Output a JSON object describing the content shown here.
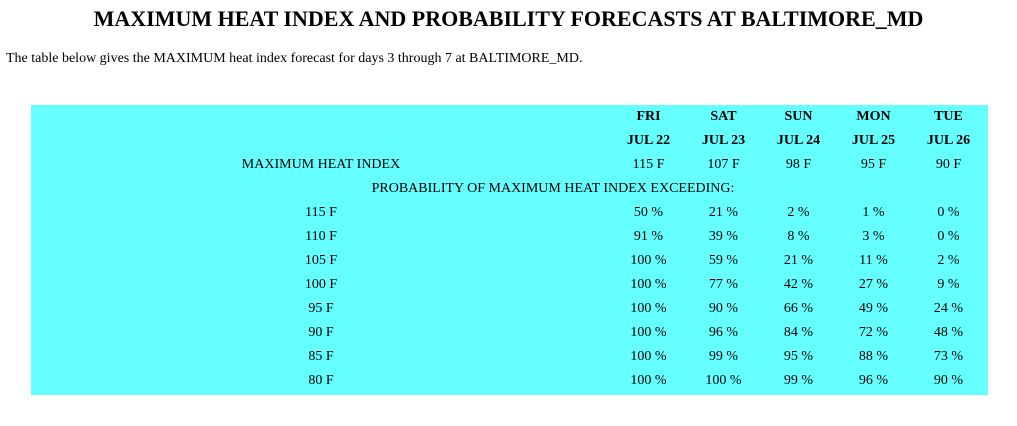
{
  "page": {
    "title": "MAXIMUM HEAT INDEX AND PROBABILITY FORECASTS AT BALTIMORE_MD",
    "intro": "The table below gives the MAXIMUM heat index forecast for days 3 through 7 at BALTIMORE_MD."
  },
  "table": {
    "background_color": "#66ffff",
    "days": [
      {
        "dow": "FRI",
        "date": "JUL 22"
      },
      {
        "dow": "SAT",
        "date": "JUL 23"
      },
      {
        "dow": "SUN",
        "date": "JUL 24"
      },
      {
        "dow": "MON",
        "date": "JUL 25"
      },
      {
        "dow": "TUE",
        "date": "JUL 26"
      }
    ],
    "max_heat_index": {
      "label": "MAXIMUM HEAT INDEX",
      "values": [
        "115 F",
        "107 F",
        "98 F",
        "95 F",
        "90 F"
      ]
    },
    "probability_heading": "PROBABILITY OF MAXIMUM HEAT INDEX EXCEEDING:",
    "probability_rows": [
      {
        "threshold": "115 F",
        "values": [
          "50 %",
          "21 %",
          "2 %",
          "1 %",
          "0 %"
        ]
      },
      {
        "threshold": "110 F",
        "values": [
          "91 %",
          "39 %",
          "8 %",
          "3 %",
          "0 %"
        ]
      },
      {
        "threshold": "105 F",
        "values": [
          "100 %",
          "59 %",
          "21 %",
          "11 %",
          "2 %"
        ]
      },
      {
        "threshold": "100 F",
        "values": [
          "100 %",
          "77 %",
          "42 %",
          "27 %",
          "9 %"
        ]
      },
      {
        "threshold": "95 F",
        "values": [
          "100 %",
          "90 %",
          "66 %",
          "49 %",
          "24 %"
        ]
      },
      {
        "threshold": "90 F",
        "values": [
          "100 %",
          "96 %",
          "84 %",
          "72 %",
          "48 %"
        ]
      },
      {
        "threshold": "85 F",
        "values": [
          "100 %",
          "99 %",
          "95 %",
          "88 %",
          "73 %"
        ]
      },
      {
        "threshold": "80 F",
        "values": [
          "100 %",
          "100 %",
          "99 %",
          "96 %",
          "90 %"
        ]
      }
    ]
  }
}
